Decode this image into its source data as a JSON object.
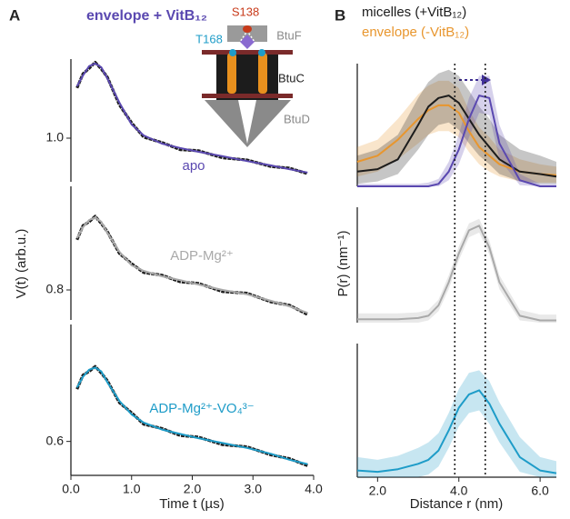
{
  "panels": [
    "A",
    "B"
  ],
  "inset": {
    "labels": [
      "S138",
      "T168",
      "BtuF",
      "BtuC",
      "BtuD"
    ]
  },
  "chart_data": [
    {
      "type": "line",
      "title": "envelope + VitB₁₂",
      "annotation": "apo",
      "x": [
        0.1,
        0.2,
        0.3,
        0.4,
        0.5,
        0.6,
        0.8,
        1.0,
        1.2,
        1.5,
        1.8,
        2.1,
        2.5,
        2.9,
        3.3,
        3.6,
        3.9
      ],
      "xlim": [
        0,
        4
      ],
      "ylim": [
        0.92,
        1.145
      ],
      "yticks": [
        {
          "value": 1,
          "label": "1.0"
        }
      ],
      "series": [
        {
          "color": "#1c1c1c",
          "values": [
            1.092,
            1.118,
            1.128,
            1.139,
            1.127,
            1.112,
            1.061,
            1.028,
            1.002,
            0.992,
            0.979,
            0.977,
            0.964,
            0.96,
            0.948,
            0.945,
            0.935
          ]
        },
        {
          "color": "#5a48b0",
          "values": [
            1.095,
            1.115,
            1.132,
            1.137,
            1.13,
            1.11,
            1.065,
            1.025,
            1.005,
            0.99,
            0.982,
            0.975,
            0.967,
            0.958,
            0.95,
            0.943,
            0.937
          ]
        }
      ]
    },
    {
      "type": "line",
      "annotation": "ADP-Mg²⁺",
      "ylabel": "V(t) (arb.u.)",
      "x": [
        0.1,
        0.2,
        0.3,
        0.4,
        0.5,
        0.6,
        0.8,
        1.0,
        1.2,
        1.5,
        1.8,
        2.1,
        2.5,
        2.9,
        3.3,
        3.6,
        3.9
      ],
      "xlim": [
        0,
        4
      ],
      "ylim": [
        0.745,
        0.99
      ],
      "yticks": [
        0.8
      ],
      "series": [
        {
          "color": "#1c1c1c",
          "values": [
            0.892,
            0.918,
            0.925,
            0.935,
            0.922,
            0.907,
            0.867,
            0.848,
            0.832,
            0.827,
            0.815,
            0.812,
            0.797,
            0.794,
            0.778,
            0.772,
            0.755
          ]
        },
        {
          "color": "#a9a9a9",
          "values": [
            0.895,
            0.915,
            0.928,
            0.933,
            0.925,
            0.905,
            0.87,
            0.845,
            0.835,
            0.825,
            0.818,
            0.81,
            0.8,
            0.792,
            0.78,
            0.77,
            0.758
          ]
        }
      ]
    },
    {
      "type": "line",
      "annotation": "ADP-Mg²⁺-VO₄³⁻",
      "xlabel": "Time t (µs)",
      "x": [
        0.1,
        0.2,
        0.3,
        0.4,
        0.5,
        0.6,
        0.8,
        1.0,
        1.2,
        1.5,
        1.8,
        2.1,
        2.5,
        2.9,
        3.3,
        3.6,
        3.9
      ],
      "xlim": [
        0,
        4
      ],
      "xticks": [
        {
          "value": 0,
          "label": "0.0"
        },
        {
          "value": 1,
          "label": "1.0"
        },
        {
          "value": 2,
          "label": "2.0"
        },
        {
          "value": 3,
          "label": "3.0"
        },
        {
          "value": 4,
          "label": "4.0"
        }
      ],
      "ylim": [
        0.537,
        0.817
      ],
      "yticks": [
        0.6
      ],
      "series": [
        {
          "color": "#1c1c1c",
          "values": [
            0.697,
            0.723,
            0.73,
            0.739,
            0.727,
            0.713,
            0.672,
            0.653,
            0.632,
            0.624,
            0.611,
            0.608,
            0.594,
            0.59,
            0.575,
            0.568,
            0.555
          ]
        },
        {
          "color": "#1e9cc8",
          "values": [
            0.7,
            0.72,
            0.733,
            0.737,
            0.73,
            0.71,
            0.675,
            0.65,
            0.635,
            0.622,
            0.614,
            0.606,
            0.597,
            0.588,
            0.577,
            0.566,
            0.558
          ]
        }
      ]
    },
    {
      "type": "line",
      "vlines": [
        3.9,
        4.65
      ],
      "x": [
        1.5,
        2.0,
        2.5,
        3.0,
        3.25,
        3.5,
        3.75,
        4.0,
        4.25,
        4.5,
        4.75,
        5.0,
        5.5,
        6.0,
        6.4
      ],
      "xlim": [
        1.5,
        6.4
      ],
      "ylim": [
        0,
        1
      ],
      "series": [
        {
          "name": "envelope (-VitB₁₂)",
          "color": "#e8962e",
          "values": [
            0.2,
            0.25,
            0.38,
            0.55,
            0.62,
            0.66,
            0.66,
            0.6,
            0.45,
            0.32,
            0.25,
            0.18,
            0.12,
            0.1,
            0.09
          ],
          "lower": [
            0.08,
            0.12,
            0.22,
            0.35,
            0.42,
            0.45,
            0.45,
            0.4,
            0.28,
            0.18,
            0.12,
            0.08,
            0.04,
            0.03,
            0.03
          ],
          "upper": [
            0.32,
            0.38,
            0.55,
            0.75,
            0.82,
            0.86,
            0.86,
            0.8,
            0.62,
            0.48,
            0.4,
            0.3,
            0.22,
            0.18,
            0.16
          ]
        },
        {
          "name": "micelles (+VitB₁₂)",
          "color": "#1c1c1c",
          "values": [
            0.12,
            0.14,
            0.22,
            0.5,
            0.65,
            0.72,
            0.74,
            0.68,
            0.55,
            0.42,
            0.32,
            0.22,
            0.12,
            0.1,
            0.08
          ],
          "lower": [
            0.02,
            0.04,
            0.1,
            0.3,
            0.42,
            0.5,
            0.52,
            0.46,
            0.35,
            0.25,
            0.18,
            0.1,
            0.04,
            0.02,
            0.02
          ],
          "upper": [
            0.25,
            0.3,
            0.42,
            0.72,
            0.85,
            0.92,
            0.95,
            0.9,
            0.78,
            0.65,
            0.55,
            0.42,
            0.3,
            0.25,
            0.2
          ]
        },
        {
          "color": "#5a48b0",
          "values": [
            0,
            0,
            0,
            0,
            0,
            0.02,
            0.12,
            0.3,
            0.55,
            0.74,
            0.72,
            0.35,
            0.05,
            0,
            0
          ],
          "lower": [
            0,
            0,
            0,
            0,
            0,
            0,
            0.05,
            0.18,
            0.4,
            0.6,
            0.58,
            0.22,
            0.01,
            0,
            0
          ],
          "upper": [
            0.02,
            0.02,
            0.02,
            0.02,
            0.03,
            0.06,
            0.2,
            0.42,
            0.72,
            0.9,
            0.9,
            0.5,
            0.1,
            0.02,
            0.02
          ]
        }
      ]
    },
    {
      "type": "line",
      "ylabel": "P(r) (nm⁻¹)",
      "x": [
        1.5,
        2.0,
        2.5,
        3.0,
        3.25,
        3.5,
        3.75,
        4.0,
        4.25,
        4.5,
        4.75,
        5.0,
        5.5,
        6.0,
        6.4
      ],
      "xlim": [
        1.5,
        6.4
      ],
      "ylim": [
        0,
        1
      ],
      "series": [
        {
          "color": "#a9a9a9",
          "values": [
            0.03,
            0.03,
            0.03,
            0.04,
            0.06,
            0.15,
            0.35,
            0.6,
            0.8,
            0.84,
            0.65,
            0.35,
            0.06,
            0.02,
            0.02
          ],
          "lower": [
            0,
            0,
            0,
            0,
            0.02,
            0.1,
            0.29,
            0.54,
            0.74,
            0.78,
            0.59,
            0.29,
            0.02,
            0,
            0
          ],
          "upper": [
            0.08,
            0.08,
            0.08,
            0.09,
            0.11,
            0.2,
            0.41,
            0.66,
            0.86,
            0.9,
            0.71,
            0.41,
            0.11,
            0.07,
            0.07
          ]
        }
      ]
    },
    {
      "type": "line",
      "xlabel": "Distance r (nm)",
      "x": [
        1.5,
        2.0,
        2.5,
        3.0,
        3.25,
        3.5,
        3.75,
        4.0,
        4.25,
        4.5,
        4.75,
        5.0,
        5.5,
        6.0,
        6.4
      ],
      "xlim": [
        1.5,
        6.4
      ],
      "xticks": [
        {
          "value": 2,
          "label": "2.0"
        },
        {
          "value": 4,
          "label": "4.0"
        },
        {
          "value": 6,
          "label": "6.0"
        }
      ],
      "ylim": [
        0,
        1
      ],
      "series": [
        {
          "color": "#1e9cc8",
          "values": [
            0.05,
            0.04,
            0.06,
            0.1,
            0.13,
            0.2,
            0.35,
            0.52,
            0.62,
            0.65,
            0.55,
            0.4,
            0.15,
            0.05,
            0.03
          ],
          "lower": [
            0,
            0,
            0,
            0,
            0.02,
            0.08,
            0.22,
            0.38,
            0.48,
            0.5,
            0.4,
            0.26,
            0.04,
            0,
            0
          ],
          "upper": [
            0.15,
            0.13,
            0.16,
            0.22,
            0.26,
            0.33,
            0.48,
            0.66,
            0.78,
            0.8,
            0.72,
            0.56,
            0.3,
            0.15,
            0.12
          ]
        }
      ]
    }
  ]
}
